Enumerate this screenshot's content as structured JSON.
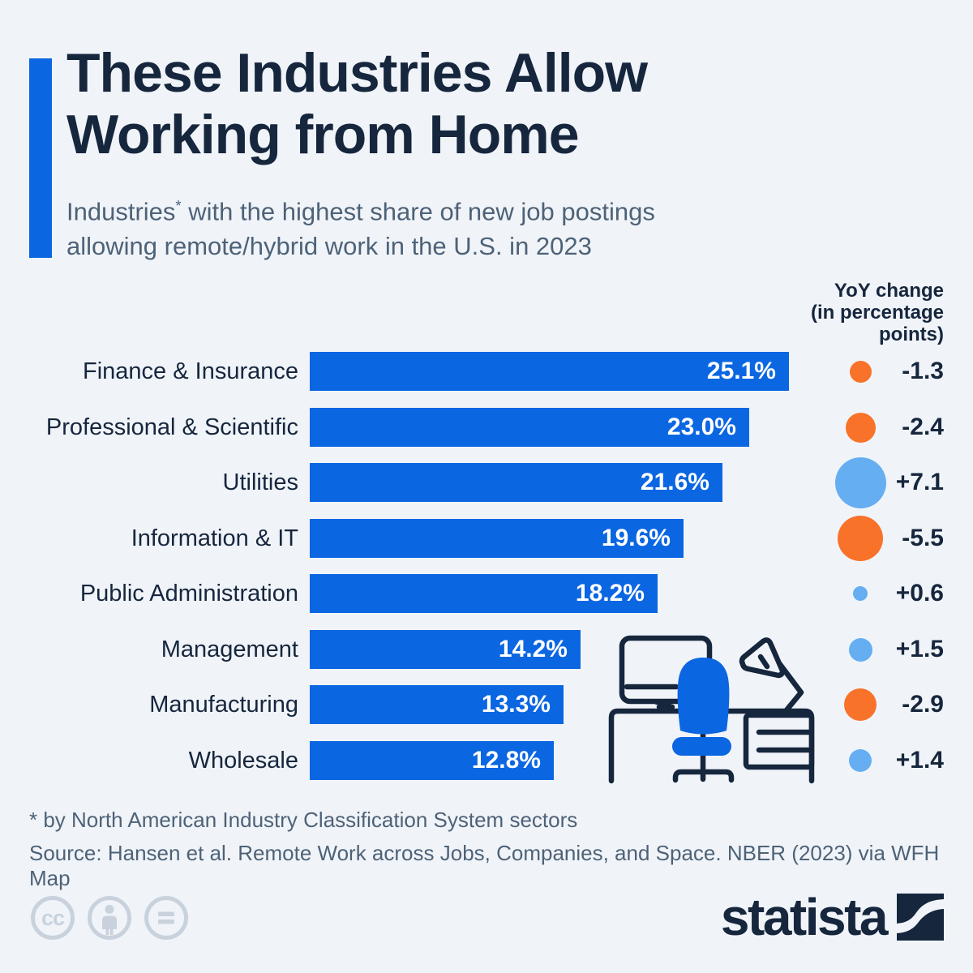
{
  "title": {
    "line1": "These Industries Allow",
    "line2": "Working from Home"
  },
  "subtitle": {
    "line1_pre": "Industries",
    "line1_sup": "*",
    "line1_rest": " with the highest share of new job postings",
    "line2": "allowing remote/hybrid work in the U.S. in 2023"
  },
  "yoy_header": {
    "line1": "YoY change",
    "line2": "(in percentage",
    "line3": "points)"
  },
  "chart_data": {
    "type": "bar",
    "orientation": "horizontal",
    "unit": "%",
    "xlim": [
      0,
      25.1
    ],
    "grid": false,
    "legend": "none",
    "value_label_position": "inside-end",
    "yoy_dot_size_rule": "diameter proportional to sqrt(abs(yoy))",
    "rows": [
      {
        "label": "Finance & Insurance",
        "value": 25.1,
        "value_label": "25.1%",
        "yoy": -1.3,
        "yoy_label": "-1.3"
      },
      {
        "label": "Professional & Scientific",
        "value": 23.0,
        "value_label": "23.0%",
        "yoy": -2.4,
        "yoy_label": "-2.4"
      },
      {
        "label": "Utilities",
        "value": 21.6,
        "value_label": "21.6%",
        "yoy": 7.1,
        "yoy_label": "+7.1"
      },
      {
        "label": "Information & IT",
        "value": 19.6,
        "value_label": "19.6%",
        "yoy": -5.5,
        "yoy_label": "-5.5"
      },
      {
        "label": "Public Administration",
        "value": 18.2,
        "value_label": "18.2%",
        "yoy": 0.6,
        "yoy_label": "+0.6"
      },
      {
        "label": "Management",
        "value": 14.2,
        "value_label": "14.2%",
        "yoy": 1.5,
        "yoy_label": "+1.5"
      },
      {
        "label": "Manufacturing",
        "value": 13.3,
        "value_label": "13.3%",
        "yoy": -2.9,
        "yoy_label": "-2.9"
      },
      {
        "label": "Wholesale",
        "value": 12.8,
        "value_label": "12.8%",
        "yoy": 1.4,
        "yoy_label": "+1.4"
      }
    ]
  },
  "colors": {
    "background": "#f0f4f9",
    "ink": "#16263d",
    "muted": "#4e6277",
    "bar": "#0b66e2",
    "yoy_negative": "#f8722a",
    "yoy_positive": "#66aef2",
    "license_gray": "#c9d2dc"
  },
  "footnote": "* by North American Industry Classification System sectors",
  "source": "Source: Hansen et al. Remote Work across Jobs, Companies, and Space. NBER (2023) via WFH Map",
  "branding": {
    "logo_text": "statista"
  },
  "illustration": "desk-with-monitor-chair-lamp-drawers"
}
